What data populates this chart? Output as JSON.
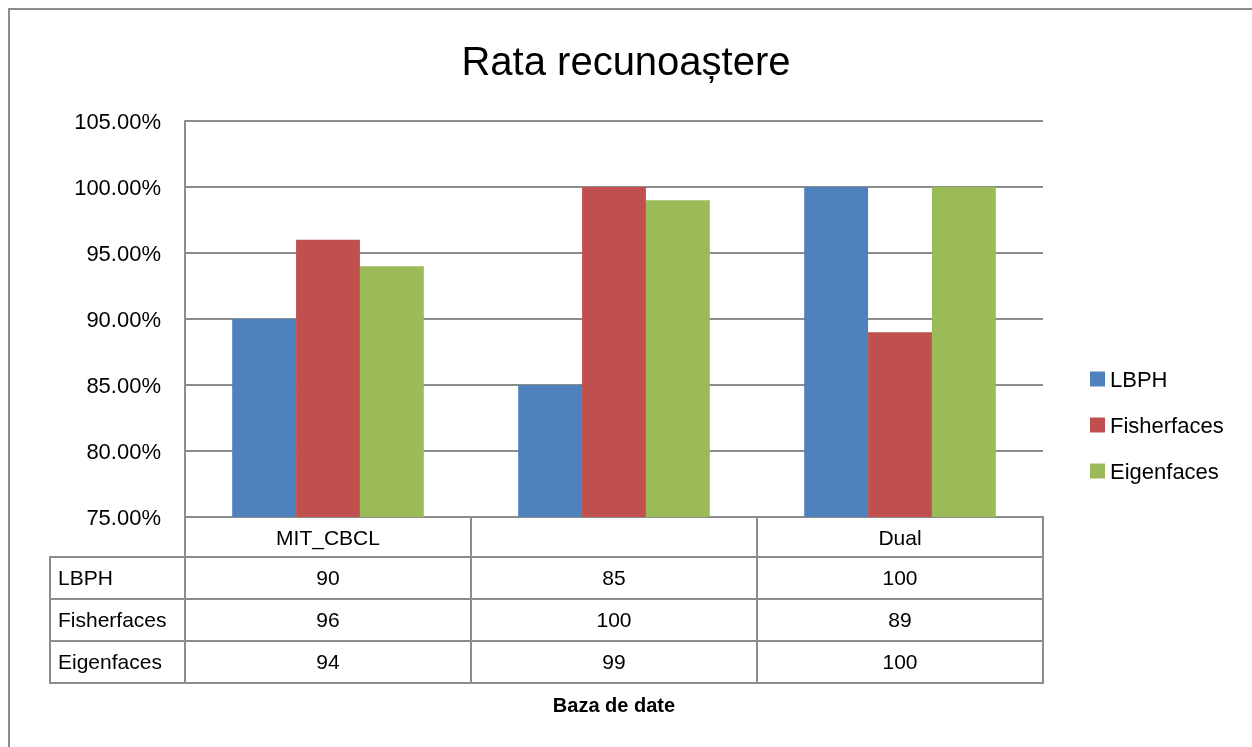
{
  "chart_data": {
    "type": "bar",
    "title": "Rata recunoaștere",
    "annotations": [
      "Baza de date"
    ],
    "categories": [
      "MIT_CBCL",
      null,
      "Dual"
    ],
    "series": [
      {
        "name": "LBPH",
        "color": "#4f81bd",
        "values": [
          90,
          85,
          100
        ]
      },
      {
        "name": "Fisherfaces",
        "color": "#c0504d",
        "values": [
          96,
          100,
          89
        ]
      },
      {
        "name": "Eigenfaces",
        "color": "#9bbb59",
        "values": [
          94,
          99,
          100
        ]
      }
    ],
    "ylim": [
      75,
      105
    ],
    "yticks": [
      {
        "value": 75,
        "label": "75.00%"
      },
      {
        "value": 80,
        "label": "80.00%"
      },
      {
        "value": 85,
        "label": "85.00%"
      },
      {
        "value": 90,
        "label": "90.00%"
      },
      {
        "value": 95,
        "label": "95.00%"
      },
      {
        "value": 100,
        "label": "100.00%"
      },
      {
        "value": 105,
        "label": "105.00%"
      }
    ],
    "grid": "y",
    "legend": "right",
    "data_labels": true
  }
}
